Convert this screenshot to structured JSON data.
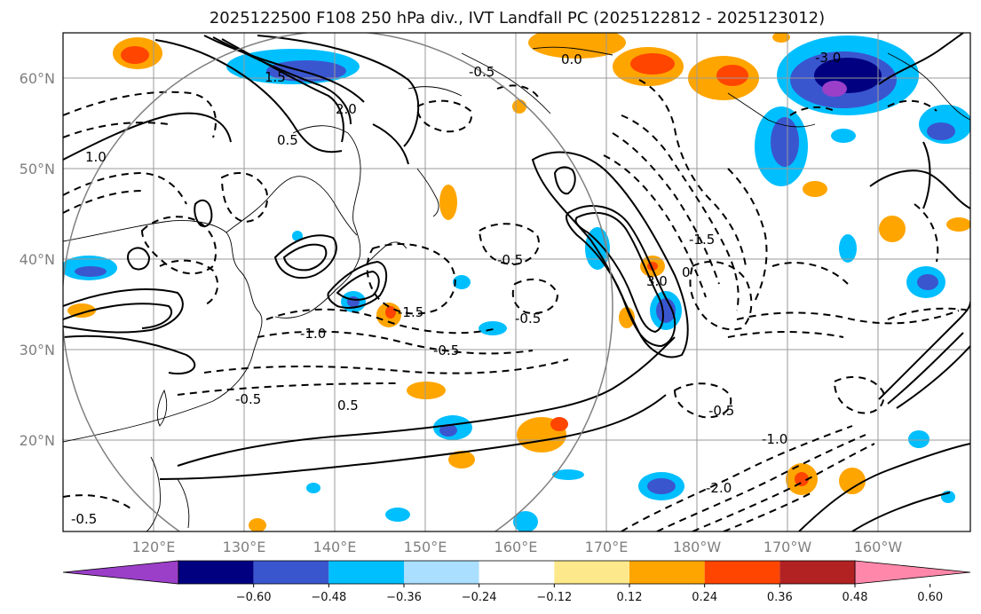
{
  "title": "2025122500 F108 250 hPa div., IVT Landfall PC (2025122812 - 2025123012)",
  "lat_labels": [
    "60°N",
    "50°N",
    "40°N",
    "30°N",
    "20°N"
  ],
  "lon_labels": [
    "120°E",
    "130°E",
    "140°E",
    "150°E",
    "160°E",
    "170°E",
    "180°W",
    "170°W",
    "160°W"
  ],
  "colorbar": {
    "ticks": [
      "−0.60",
      "−0.48",
      "−0.36",
      "−0.24",
      "−0.12",
      "0.12",
      "0.24",
      "0.36",
      "0.48",
      "0.60"
    ],
    "colors": [
      "#9b3fc9",
      "#000080",
      "#3a56cf",
      "#00bfff",
      "#aadfff",
      "#ffffff",
      "#fde98c",
      "#ffa500",
      "#ff4500",
      "#b22222",
      "#ff88aa"
    ]
  },
  "contour_labels": {
    "solid": [
      "1.5",
      "2.0",
      "0.5",
      "1.0",
      "3.0",
      "0",
      "0.0",
      "0.5"
    ],
    "dashed": [
      "-0.5",
      "-1.0",
      "-1.5",
      "-2.0",
      "-3.0",
      "-0.5",
      "-1.5",
      "-0.5",
      "-0.5",
      "-0.5",
      "-1.0",
      "-0.5",
      "-0.5"
    ]
  }
}
